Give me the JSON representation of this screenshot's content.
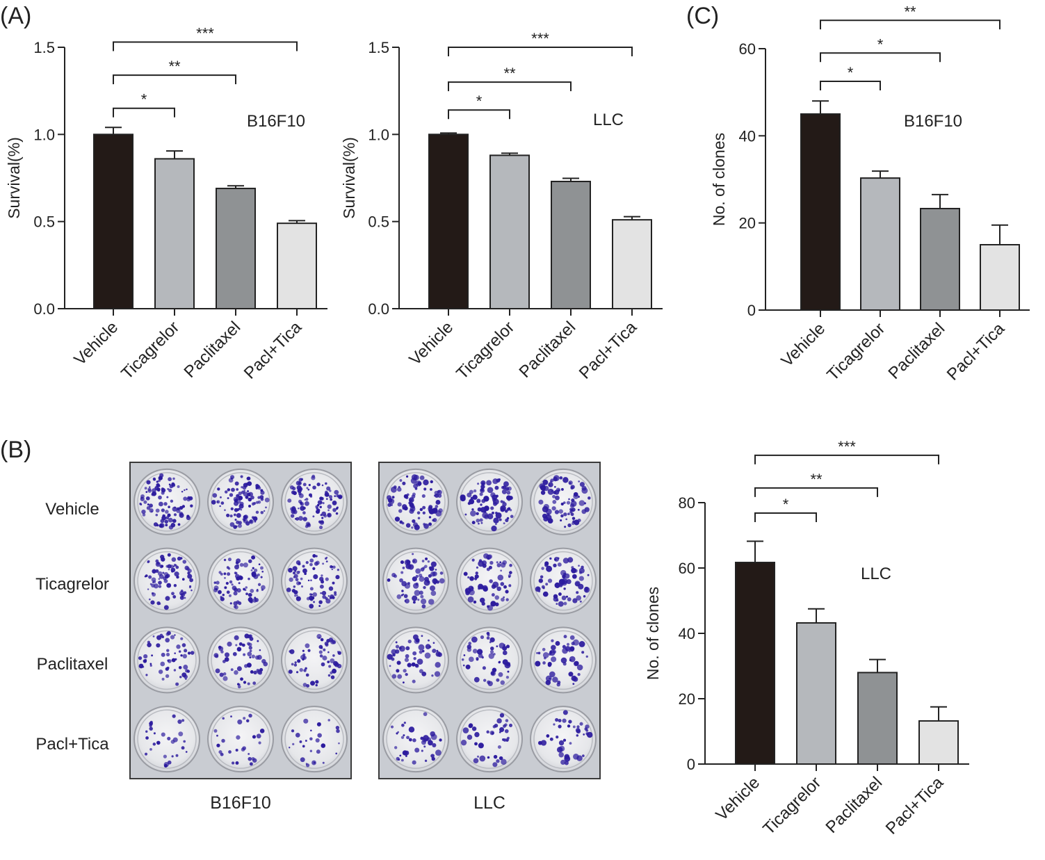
{
  "panel_labels": {
    "a": "(A)",
    "b": "(B)",
    "c": "(C)"
  },
  "colors": {
    "bar_fills": [
      "#231a17",
      "#b5b8bc",
      "#8f9294",
      "#e3e3e3"
    ],
    "axis": "#222222",
    "colony_stain": "#2c1b9e",
    "plate_background": "#c9ccd2"
  },
  "chart_data": [
    {
      "id": "chart-a1",
      "type": "bar",
      "categories": [
        "Vehicle",
        "Ticagrelor",
        "Paclitaxel",
        "Pacl+Tica"
      ],
      "values": [
        1.0,
        0.86,
        0.69,
        0.49
      ],
      "errors": [
        0.04,
        0.045,
        0.015,
        0.015
      ],
      "ylabel": "Survival(%)",
      "annotation": "B16F10",
      "ylim": [
        0,
        1.5
      ],
      "yticks": [
        0.0,
        0.5,
        1.0,
        1.5
      ],
      "ytick_labels": [
        "0.0",
        "0.5",
        "1.0",
        "1.5"
      ],
      "significance": [
        {
          "from": 0,
          "to": 1,
          "y": 1.15,
          "label": "*"
        },
        {
          "from": 0,
          "to": 2,
          "y": 1.34,
          "label": "**"
        },
        {
          "from": 0,
          "to": 3,
          "y": 1.53,
          "label": "***"
        }
      ]
    },
    {
      "id": "chart-a2",
      "type": "bar",
      "categories": [
        "Vehicle",
        "Ticagrelor",
        "Paclitaxel",
        "Pacl+Tica"
      ],
      "values": [
        1.0,
        0.88,
        0.73,
        0.51
      ],
      "errors": [
        0.008,
        0.012,
        0.018,
        0.018
      ],
      "ylabel": "Survival(%)",
      "annotation": "LLC",
      "ylim": [
        0,
        1.5
      ],
      "yticks": [
        0.0,
        0.5,
        1.0,
        1.5
      ],
      "ytick_labels": [
        "0.0",
        "0.5",
        "1.0",
        "1.5"
      ],
      "significance": [
        {
          "from": 0,
          "to": 1,
          "y": 1.14,
          "label": "*"
        },
        {
          "from": 0,
          "to": 2,
          "y": 1.3,
          "label": "**"
        },
        {
          "from": 0,
          "to": 3,
          "y": 1.5,
          "label": "***"
        }
      ]
    },
    {
      "id": "chart-c1",
      "type": "bar",
      "categories": [
        "Vehicle",
        "Ticagrelor",
        "Paclitaxel",
        "Pacl+Tica"
      ],
      "values": [
        45,
        30.3,
        23.3,
        15
      ],
      "errors": [
        3,
        1.6,
        3.2,
        4.5
      ],
      "ylabel": "No. of clones",
      "annotation": "B16F10",
      "ylim": [
        0,
        60
      ],
      "yticks": [
        0,
        20,
        40,
        60
      ],
      "ytick_labels": [
        "0",
        "20",
        "40",
        "60"
      ],
      "significance": [
        {
          "from": 0,
          "to": 1,
          "y": 52.5,
          "label": "*"
        },
        {
          "from": 0,
          "to": 2,
          "y": 59,
          "label": "*"
        },
        {
          "from": 0,
          "to": 3,
          "y": 66.5,
          "label": "**"
        }
      ]
    },
    {
      "id": "chart-c2",
      "type": "bar",
      "categories": [
        "Vehicle",
        "Ticagrelor",
        "Paclitaxel",
        "Pacl+Tica"
      ],
      "values": [
        61.7,
        43.2,
        28,
        13.2
      ],
      "errors": [
        6.5,
        4.3,
        4,
        4.3
      ],
      "ylabel": "No. of clones",
      "annotation": "LLC",
      "ylim": [
        0,
        80
      ],
      "yticks": [
        0,
        20,
        40,
        60,
        80
      ],
      "ytick_labels": [
        "0",
        "20",
        "40",
        "60",
        "80"
      ],
      "significance": [
        {
          "from": 0,
          "to": 1,
          "y": 76.8,
          "label": "*"
        },
        {
          "from": 0,
          "to": 2,
          "y": 84.5,
          "label": "**"
        },
        {
          "from": 0,
          "to": 3,
          "y": 94.5,
          "label": "***"
        }
      ]
    }
  ],
  "plates": {
    "row_labels": [
      "Vehicle",
      "Ticagrelor",
      "Paclitaxel",
      "Pacl+Tica"
    ],
    "plate_labels": [
      "B16F10",
      "LLC"
    ],
    "rows": 4,
    "cols": 3
  }
}
